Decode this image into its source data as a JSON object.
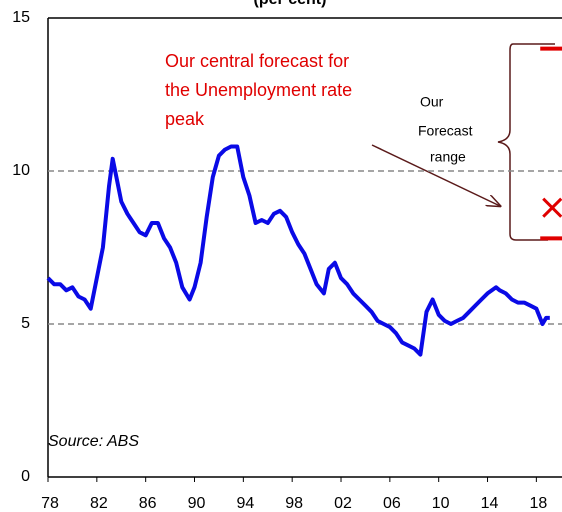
{
  "chart_data": {
    "type": "line",
    "title": "(per cent)",
    "x": [
      1978.0,
      1978.5,
      1979.0,
      1979.5,
      1980.0,
      1980.5,
      1981.0,
      1981.5,
      1982.0,
      1982.5,
      1983.0,
      1983.3,
      1983.6,
      1984.0,
      1984.5,
      1985.0,
      1985.5,
      1986.0,
      1986.5,
      1987.0,
      1987.5,
      1988.0,
      1988.5,
      1989.0,
      1989.6,
      1990.0,
      1990.5,
      1991.0,
      1991.5,
      1992.0,
      1992.5,
      1993.0,
      1993.5,
      1994.0,
      1994.5,
      1995.0,
      1995.5,
      1996.0,
      1996.5,
      1997.0,
      1997.5,
      1998.0,
      1998.5,
      1999.0,
      1999.5,
      2000.0,
      2000.6,
      2001.0,
      2001.5,
      2002.0,
      2002.5,
      2003.0,
      2003.5,
      2004.0,
      2004.5,
      2005.0,
      2005.5,
      2006.0,
      2006.5,
      2007.0,
      2007.5,
      2008.0,
      2008.5,
      2009.0,
      2009.5,
      2010.0,
      2010.5,
      2011.0,
      2011.5,
      2012.0,
      2012.5,
      2013.0,
      2013.5,
      2014.0,
      2014.7,
      2015.0,
      2015.5,
      2016.0,
      2016.5,
      2017.0,
      2017.5,
      2018.0,
      2018.5,
      2018.8,
      2019.1
    ],
    "series": [
      {
        "name": "Unemployment rate",
        "color": "#0a0ae6",
        "values": [
          6.5,
          6.3,
          6.3,
          6.1,
          6.2,
          5.9,
          5.8,
          5.5,
          6.5,
          7.5,
          9.5,
          10.4,
          9.8,
          9.0,
          8.6,
          8.3,
          8.0,
          7.9,
          8.3,
          8.3,
          7.8,
          7.5,
          7.0,
          6.2,
          5.8,
          6.2,
          7.0,
          8.5,
          9.8,
          10.5,
          10.7,
          10.8,
          10.8,
          9.8,
          9.2,
          8.3,
          8.4,
          8.3,
          8.6,
          8.7,
          8.5,
          8.0,
          7.6,
          7.3,
          6.8,
          6.3,
          6.0,
          6.8,
          7.0,
          6.5,
          6.3,
          6.0,
          5.8,
          5.6,
          5.4,
          5.1,
          5.0,
          4.9,
          4.7,
          4.4,
          4.3,
          4.2,
          4.0,
          5.4,
          5.8,
          5.3,
          5.1,
          5.0,
          5.1,
          5.2,
          5.4,
          5.6,
          5.8,
          6.0,
          6.2,
          6.1,
          6.0,
          5.8,
          5.7,
          5.7,
          5.6,
          5.5,
          5.0,
          5.2,
          5.2
        ]
      }
    ],
    "xlim": [
      1978,
      2020.1
    ],
    "ylim": [
      0,
      15
    ],
    "xticks": [
      {
        "value": 1978,
        "label": "78"
      },
      {
        "value": 1982,
        "label": "82"
      },
      {
        "value": 1986,
        "label": "86"
      },
      {
        "value": 1990,
        "label": "90"
      },
      {
        "value": 1994,
        "label": "94"
      },
      {
        "value": 1998,
        "label": "98"
      },
      {
        "value": 2002,
        "label": "02"
      },
      {
        "value": 2006,
        "label": "06"
      },
      {
        "value": 2010,
        "label": "10"
      },
      {
        "value": 2014,
        "label": "14"
      },
      {
        "value": 2018,
        "label": "18"
      }
    ],
    "yticks": [
      0,
      5,
      10,
      15
    ],
    "grid": true,
    "forecast": {
      "x": 2019.3,
      "high": 14,
      "low": 7.8,
      "central": 8.8,
      "color": "#e00000"
    },
    "forecast_note": [
      "Our central forecast for",
      "the Unemployment rate",
      "peak"
    ],
    "range_note": [
      "Our",
      "Forecast",
      "range"
    ],
    "source": "Source: ABS"
  }
}
